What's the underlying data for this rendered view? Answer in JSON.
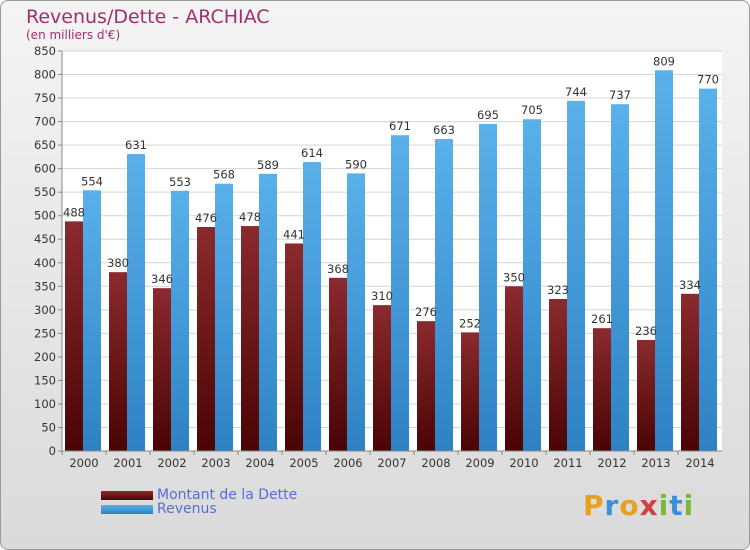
{
  "chart_data": {
    "type": "bar",
    "title": "Revenus/Dette - ARCHIAC",
    "subtitle": "(en milliers d'€)",
    "categories": [
      "2000",
      "2001",
      "2002",
      "2003",
      "2004",
      "2005",
      "2006",
      "2007",
      "2008",
      "2009",
      "2010",
      "2011",
      "2012",
      "2013",
      "2014"
    ],
    "series": [
      {
        "name": "Montant de la Dette",
        "color": "#6e1418",
        "values": [
          488,
          380,
          346,
          476,
          478,
          441,
          368,
          310,
          276,
          252,
          350,
          323,
          261,
          236,
          334
        ]
      },
      {
        "name": "Revenus",
        "color": "#4aa2e0",
        "values": [
          554,
          631,
          553,
          568,
          589,
          614,
          590,
          671,
          663,
          695,
          705,
          744,
          737,
          809,
          770
        ]
      }
    ],
    "ylim": [
      0,
      850
    ],
    "ytick_step": 50,
    "grid": true,
    "legend_position": "bottom-left"
  },
  "logo": {
    "text": "Proxiti",
    "colors": [
      "#e8a020",
      "#3a8fd8",
      "#e8a020",
      "#d04040",
      "#7ab83a",
      "#3a8fd8",
      "#7ab83a"
    ]
  }
}
